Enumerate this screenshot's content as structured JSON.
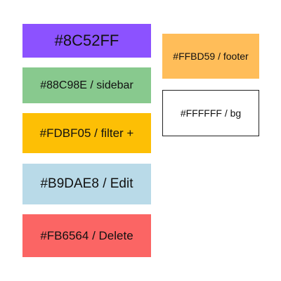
{
  "swatches": {
    "purple": {
      "label": "#8C52FF",
      "color": "#8C52FF"
    },
    "green": {
      "label": "#88C98E / sidebar",
      "color": "#88C98E"
    },
    "yellow": {
      "label": "#FDBF05 / filter +",
      "color": "#FDBF05"
    },
    "blue": {
      "label": "#B9DAE8 / Edit",
      "color": "#B9DAE8"
    },
    "red": {
      "label": "#FB6564 / Delete",
      "color": "#FB6564"
    },
    "orange": {
      "label": "#FFBD59 / footer",
      "color": "#FFBD59"
    },
    "white": {
      "label": "#FFFFFF / bg",
      "color": "#FFFFFF"
    }
  }
}
